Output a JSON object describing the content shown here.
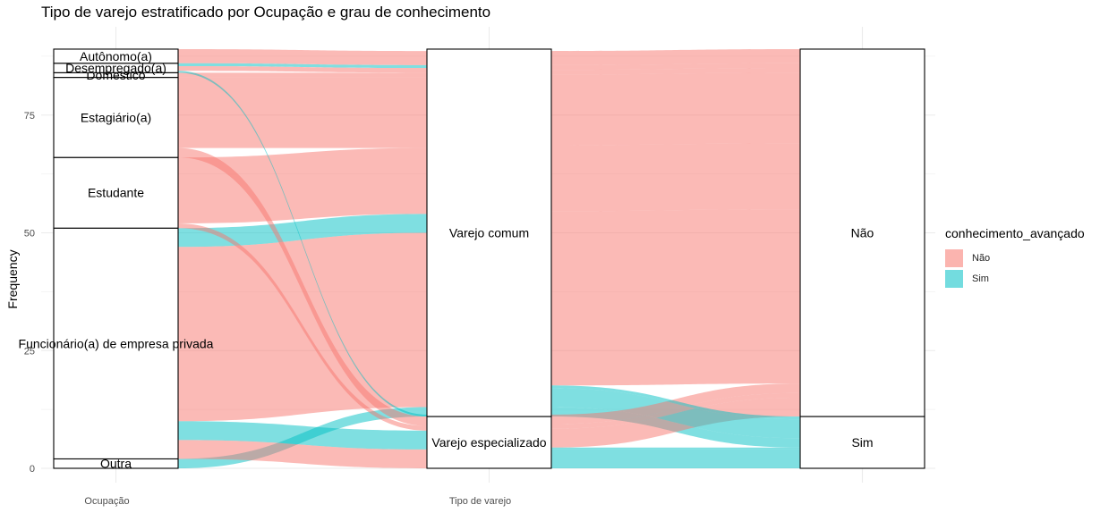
{
  "chart_data": {
    "type": "alluvial",
    "title": "Tipo de varejo estratificado por Ocupação e grau de conhecimento",
    "ylabel": "Frequency",
    "ylim": [
      0,
      89
    ],
    "yticks": [
      0,
      25,
      50,
      75
    ],
    "axes": [
      "Ocupação",
      "Tipo de varejo"
    ],
    "fill_variable": "conhecimento_avançado",
    "fill_levels": [
      {
        "name": "Não",
        "color": "#F8766D"
      },
      {
        "name": "Sim",
        "color": "#00BFC4"
      }
    ],
    "strata": {
      "ocupacao": [
        {
          "label": "Outra",
          "count": 2
        },
        {
          "label": "Funcionário(a) de empresa privada",
          "count": 49
        },
        {
          "label": "Estudante",
          "count": 15
        },
        {
          "label": "Estagiário(a)",
          "count": 17
        },
        {
          "label": "Doméstico",
          "count": 1
        },
        {
          "label": "Desempregado(a)",
          "count": 2
        },
        {
          "label": "Autônomo(a)",
          "count": 3
        }
      ],
      "tipo_varejo": [
        {
          "label": "Varejo especializado",
          "count": 11
        },
        {
          "label": "Varejo comum",
          "count": 78
        }
      ],
      "conhecimento": [
        {
          "label": "Sim",
          "count": 11
        },
        {
          "label": "Não",
          "count": 78
        }
      ]
    },
    "flows": [
      {
        "ocupacao": "Outra",
        "tipo_varejo": "Varejo comum",
        "conhecimento": "Sim",
        "count": 2
      },
      {
        "ocupacao": "Funcionário(a) de empresa privada",
        "tipo_varejo": "Varejo especializado",
        "conhecimento": "Sim",
        "count": 4
      },
      {
        "ocupacao": "Funcionário(a) de empresa privada",
        "tipo_varejo": "Varejo especializado",
        "conhecimento": "Não",
        "count": 4
      },
      {
        "ocupacao": "Funcionário(a) de empresa privada",
        "tipo_varejo": "Varejo comum",
        "conhecimento": "Sim",
        "count": 4
      },
      {
        "ocupacao": "Funcionário(a) de empresa privada",
        "tipo_varejo": "Varejo comum",
        "conhecimento": "Não",
        "count": 37
      },
      {
        "ocupacao": "Estudante",
        "tipo_varejo": "Varejo especializado",
        "conhecimento": "Não",
        "count": 1
      },
      {
        "ocupacao": "Estudante",
        "tipo_varejo": "Varejo comum",
        "conhecimento": "Não",
        "count": 14
      },
      {
        "ocupacao": "Estagiário(a)",
        "tipo_varejo": "Varejo especializado",
        "conhecimento": "Não",
        "count": 2
      },
      {
        "ocupacao": "Estagiário(a)",
        "tipo_varejo": "Varejo comum",
        "conhecimento": "Não",
        "count": 15
      },
      {
        "ocupacao": "Doméstico",
        "tipo_varejo": "Varejo comum",
        "conhecimento": "Não",
        "count": 1
      },
      {
        "ocupacao": "Desempregado(a)",
        "tipo_varejo": "Varejo especializado",
        "conhecimento": "Sim",
        "count": 0.4
      },
      {
        "ocupacao": "Desempregado(a)",
        "tipo_varejo": "Varejo comum",
        "conhecimento": "Sim",
        "count": 0.6
      },
      {
        "ocupacao": "Desempregado(a)",
        "tipo_varejo": "Varejo comum",
        "conhecimento": "Não",
        "count": 1
      },
      {
        "ocupacao": "Autônomo(a)",
        "tipo_varejo": "Varejo comum",
        "conhecimento": "Não",
        "count": 3
      }
    ],
    "grid": true,
    "legend_position": "right"
  }
}
